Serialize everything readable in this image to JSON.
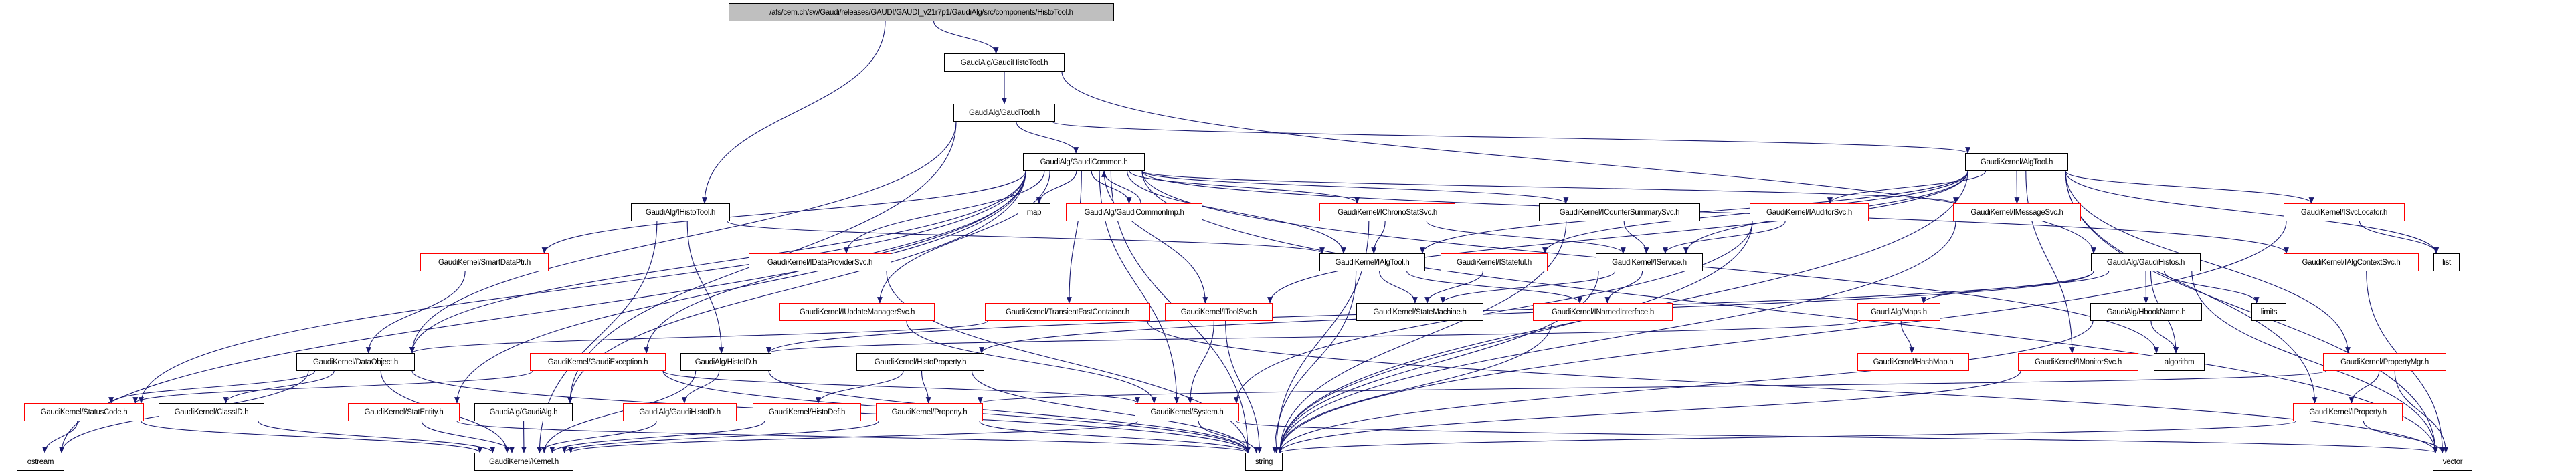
{
  "colors": {
    "edge": "#191970",
    "documented_border": "#000000",
    "undocumented_border": "#ff0000",
    "root_fill": "#bfbfbf"
  },
  "nodes": [
    {
      "id": "root",
      "label": "/afs/cern.ch/sw/Gaudi/releases/GAUDI/GAUDI_v21r7p1/GaudiAlg/src/components/HistoTool.h",
      "border": "black"
    },
    {
      "id": "GaudiHistoTool",
      "label": "GaudiAlg/GaudiHistoTool.h",
      "border": "black"
    },
    {
      "id": "GaudiTool",
      "label": "GaudiAlg/GaudiTool.h",
      "border": "black"
    },
    {
      "id": "GaudiCommon",
      "label": "GaudiAlg/GaudiCommon.h",
      "border": "black"
    },
    {
      "id": "AlgTool",
      "label": "GaudiKernel/AlgTool.h",
      "border": "black"
    },
    {
      "id": "IHistoTool",
      "label": "GaudiAlg/IHistoTool.h",
      "border": "black"
    },
    {
      "id": "map",
      "label": "map",
      "border": "black"
    },
    {
      "id": "GaudiCommonImp",
      "label": "GaudiAlg/GaudiCommonImp.h",
      "border": "red"
    },
    {
      "id": "IChronoStatSvc",
      "label": "GaudiKernel/IChronoStatSvc.h",
      "border": "red"
    },
    {
      "id": "ICounterSummarySvc",
      "label": "GaudiKernel/ICounterSummarySvc.h",
      "border": "black"
    },
    {
      "id": "IAuditorSvc",
      "label": "GaudiKernel/IAuditorSvc.h",
      "border": "red"
    },
    {
      "id": "IMessageSvc",
      "label": "GaudiKernel/IMessageSvc.h",
      "border": "red"
    },
    {
      "id": "ISvcLocator",
      "label": "GaudiKernel/ISvcLocator.h",
      "border": "red"
    },
    {
      "id": "SmartDataPtr",
      "label": "GaudiKernel/SmartDataPtr.h",
      "border": "red"
    },
    {
      "id": "IDataProviderSvc",
      "label": "GaudiKernel/IDataProviderSvc.h",
      "border": "red"
    },
    {
      "id": "IAlgTool",
      "label": "GaudiKernel/IAlgTool.h",
      "border": "black"
    },
    {
      "id": "IStateful",
      "label": "GaudiKernel/IStateful.h",
      "border": "red"
    },
    {
      "id": "IService",
      "label": "GaudiKernel/IService.h",
      "border": "black"
    },
    {
      "id": "GaudiHistos",
      "label": "GaudiAlg/GaudiHistos.h",
      "border": "black"
    },
    {
      "id": "IAlgContextSvc",
      "label": "GaudiKernel/IAlgContextSvc.h",
      "border": "red"
    },
    {
      "id": "list",
      "label": "list",
      "border": "black"
    },
    {
      "id": "IUpdateManagerSvc",
      "label": "GaudiKernel/IUpdateManagerSvc.h",
      "border": "red"
    },
    {
      "id": "TransientFastContainer",
      "label": "GaudiKernel/TransientFastContainer.h",
      "border": "red"
    },
    {
      "id": "IToolSvc",
      "label": "GaudiKernel/IToolSvc.h",
      "border": "red"
    },
    {
      "id": "StateMachine",
      "label": "GaudiKernel/StateMachine.h",
      "border": "black"
    },
    {
      "id": "INamedInterface",
      "label": "GaudiKernel/INamedInterface.h",
      "border": "red"
    },
    {
      "id": "Maps",
      "label": "GaudiAlg/Maps.h",
      "border": "red"
    },
    {
      "id": "HbookName",
      "label": "GaudiAlg/HbookName.h",
      "border": "black"
    },
    {
      "id": "limits",
      "label": "limits",
      "border": "black"
    },
    {
      "id": "DataObject",
      "label": "GaudiKernel/DataObject.h",
      "border": "black"
    },
    {
      "id": "GaudiException",
      "label": "GaudiKernel/GaudiException.h",
      "border": "red"
    },
    {
      "id": "HistoID",
      "label": "GaudiAlg/HistoID.h",
      "border": "black"
    },
    {
      "id": "HistoProperty",
      "label": "GaudiKernel/HistoProperty.h",
      "border": "black"
    },
    {
      "id": "HashMap",
      "label": "GaudiKernel/HashMap.h",
      "border": "red"
    },
    {
      "id": "IMonitorSvc",
      "label": "GaudiKernel/IMonitorSvc.h",
      "border": "red"
    },
    {
      "id": "algorithm",
      "label": "algorithm",
      "border": "black"
    },
    {
      "id": "PropertyMgr",
      "label": "GaudiKernel/PropertyMgr.h",
      "border": "red"
    },
    {
      "id": "StatusCode",
      "label": "GaudiKernel/StatusCode.h",
      "border": "red"
    },
    {
      "id": "ClassID",
      "label": "GaudiKernel/ClassID.h",
      "border": "black"
    },
    {
      "id": "StatEntity",
      "label": "GaudiKernel/StatEntity.h",
      "border": "red"
    },
    {
      "id": "GaudiAlg",
      "label": "GaudiAlg/GaudiAlg.h",
      "border": "black"
    },
    {
      "id": "GaudiHistoID",
      "label": "GaudiAlg/GaudiHistoID.h",
      "border": "red"
    },
    {
      "id": "HistoDef",
      "label": "GaudiKernel/HistoDef.h",
      "border": "red"
    },
    {
      "id": "Property",
      "label": "GaudiKernel/Property.h",
      "border": "red"
    },
    {
      "id": "System",
      "label": "GaudiKernel/System.h",
      "border": "red"
    },
    {
      "id": "IProperty",
      "label": "GaudiKernel/IProperty.h",
      "border": "red"
    },
    {
      "id": "ostream",
      "label": "ostream",
      "border": "black"
    },
    {
      "id": "Kernel",
      "label": "GaudiKernel/Kernel.h",
      "border": "black"
    },
    {
      "id": "string",
      "label": "string",
      "border": "black"
    },
    {
      "id": "vector",
      "label": "vector",
      "border": "black"
    }
  ],
  "edges": [
    [
      "root",
      "GaudiHistoTool"
    ],
    [
      "root",
      "IHistoTool"
    ],
    [
      "GaudiHistoTool",
      "GaudiTool"
    ],
    [
      "GaudiHistoTool",
      "GaudiHistos"
    ],
    [
      "GaudiTool",
      "GaudiCommon"
    ],
    [
      "GaudiTool",
      "AlgTool"
    ],
    [
      "GaudiTool",
      "DataObject"
    ],
    [
      "GaudiTool",
      "GaudiAlg"
    ],
    [
      "GaudiCommon",
      "SmartDataPtr"
    ],
    [
      "GaudiCommon",
      "IDataProviderSvc"
    ],
    [
      "GaudiCommon",
      "IUpdateManagerSvc"
    ],
    [
      "GaudiCommon",
      "map"
    ],
    [
      "GaudiCommon",
      "GaudiCommonImp"
    ],
    [
      "GaudiCommon",
      "IChronoStatSvc"
    ],
    [
      "GaudiCommon",
      "ICounterSummarySvc"
    ],
    [
      "GaudiCommon",
      "IAlgTool"
    ],
    [
      "GaudiCommon",
      "IToolSvc"
    ],
    [
      "GaudiCommon",
      "TransientFastContainer"
    ],
    [
      "GaudiCommon",
      "StatusCode"
    ],
    [
      "GaudiCommon",
      "StatEntity"
    ],
    [
      "GaudiCommon",
      "GaudiException"
    ],
    [
      "GaudiCommon",
      "string"
    ],
    [
      "GaudiCommon",
      "System"
    ],
    [
      "GaudiCommon",
      "IMessageSvc"
    ],
    [
      "GaudiCommon",
      "IAlgContextSvc"
    ],
    [
      "GaudiCommon",
      "algorithm"
    ],
    [
      "GaudiCommon",
      "vector"
    ],
    [
      "GaudiCommon",
      "ostream"
    ],
    [
      "GaudiCommon",
      "DataObject"
    ],
    [
      "GaudiCommon",
      "GaudiAlg"
    ],
    [
      "GaudiCommonImp",
      "GaudiCommon"
    ],
    [
      "AlgTool",
      "IAlgTool"
    ],
    [
      "AlgTool",
      "IService"
    ],
    [
      "AlgTool",
      "IMessageSvc"
    ],
    [
      "AlgTool",
      "ISvcLocator"
    ],
    [
      "AlgTool",
      "list"
    ],
    [
      "AlgTool",
      "IAuditorSvc"
    ],
    [
      "AlgTool",
      "IProperty"
    ],
    [
      "AlgTool",
      "PropertyMgr"
    ],
    [
      "AlgTool",
      "IToolSvc"
    ],
    [
      "AlgTool",
      "IMonitorSvc"
    ],
    [
      "AlgTool",
      "IStateful"
    ],
    [
      "AlgTool",
      "vector"
    ],
    [
      "AlgTool",
      "string"
    ],
    [
      "IHistoTool",
      "IAlgTool"
    ],
    [
      "IHistoTool",
      "HistoID"
    ],
    [
      "IHistoTool",
      "Kernel"
    ],
    [
      "IChronoStatSvc",
      "IAlgTool"
    ],
    [
      "IChronoStatSvc",
      "IService"
    ],
    [
      "IChronoStatSvc",
      "string"
    ],
    [
      "ICounterSummarySvc",
      "IService"
    ],
    [
      "ICounterSummarySvc",
      "string"
    ],
    [
      "IAuditorSvc",
      "IService"
    ],
    [
      "IAuditorSvc",
      "System"
    ],
    [
      "IAuditorSvc",
      "string"
    ],
    [
      "IMessageSvc",
      "string"
    ],
    [
      "ISvcLocator",
      "list"
    ],
    [
      "ISvcLocator",
      "string"
    ],
    [
      "IAlgTool",
      "StateMachine"
    ],
    [
      "IAlgTool",
      "INamedInterface"
    ],
    [
      "IAlgTool",
      "string"
    ],
    [
      "IStateful",
      "StateMachine"
    ],
    [
      "IService",
      "StateMachine"
    ],
    [
      "IService",
      "INamedInterface"
    ],
    [
      "IService",
      "string"
    ],
    [
      "GaudiHistos",
      "HbookName"
    ],
    [
      "GaudiHistos",
      "limits"
    ],
    [
      "GaudiHistos",
      "Maps"
    ],
    [
      "GaudiHistos",
      "algorithm"
    ],
    [
      "GaudiHistos",
      "vector"
    ],
    [
      "GaudiHistos",
      "HistoID"
    ],
    [
      "GaudiHistos",
      "HistoProperty"
    ],
    [
      "HbookName",
      "algorithm"
    ],
    [
      "HbookName",
      "string"
    ],
    [
      "Maps",
      "HashMap"
    ],
    [
      "Maps",
      "HistoID"
    ],
    [
      "IToolSvc",
      "System"
    ],
    [
      "IToolSvc",
      "string"
    ],
    [
      "SmartDataPtr",
      "DataObject"
    ],
    [
      "IDataProviderSvc",
      "string"
    ],
    [
      "IUpdateManagerSvc",
      "System"
    ],
    [
      "TransientFastContainer",
      "DataObject"
    ],
    [
      "TransientFastContainer",
      "vector"
    ],
    [
      "INamedInterface",
      "string"
    ],
    [
      "IAlgContextSvc",
      "vector"
    ],
    [
      "DataObject",
      "StatusCode"
    ],
    [
      "DataObject",
      "ClassID"
    ],
    [
      "DataObject",
      "ostream"
    ],
    [
      "DataObject",
      "Kernel"
    ],
    [
      "DataObject",
      "string"
    ],
    [
      "GaudiException",
      "StatusCode"
    ],
    [
      "GaudiException",
      "System"
    ],
    [
      "GaudiException",
      "string"
    ],
    [
      "HistoID",
      "GaudiHistoID"
    ],
    [
      "HistoID",
      "Kernel"
    ],
    [
      "HistoID",
      "string"
    ],
    [
      "HistoProperty",
      "HistoDef"
    ],
    [
      "HistoProperty",
      "Property"
    ],
    [
      "HistoProperty",
      "string"
    ],
    [
      "IMonitorSvc",
      "string"
    ],
    [
      "PropertyMgr",
      "IProperty"
    ],
    [
      "PropertyMgr",
      "vector"
    ],
    [
      "PropertyMgr",
      "Property"
    ],
    [
      "StatusCode",
      "ostream"
    ],
    [
      "StatusCode",
      "Kernel"
    ],
    [
      "ClassID",
      "Kernel"
    ],
    [
      "StatEntity",
      "Kernel"
    ],
    [
      "StatEntity",
      "string"
    ],
    [
      "GaudiAlg",
      "Kernel"
    ],
    [
      "GaudiHistoID",
      "Kernel"
    ],
    [
      "HistoDef",
      "Kernel"
    ],
    [
      "Property",
      "Kernel"
    ],
    [
      "Property",
      "string"
    ],
    [
      "System",
      "string"
    ],
    [
      "System",
      "Kernel"
    ],
    [
      "System",
      "vector"
    ],
    [
      "IProperty",
      "vector"
    ],
    [
      "IProperty",
      "string"
    ]
  ]
}
